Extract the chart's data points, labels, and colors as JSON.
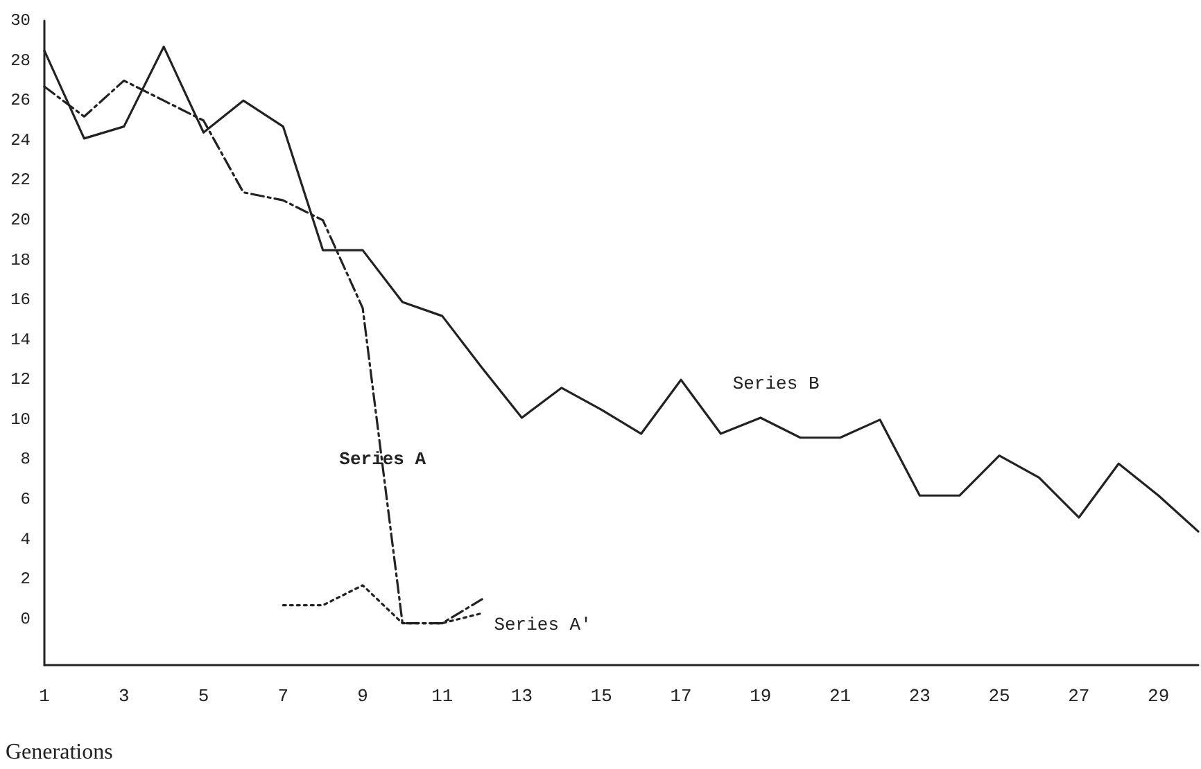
{
  "chart_data": {
    "type": "line",
    "xlabel": "Generations",
    "x": [
      1,
      2,
      3,
      4,
      5,
      6,
      7,
      8,
      9,
      10,
      11,
      12,
      13,
      14,
      15,
      16,
      17,
      18,
      19,
      20,
      21,
      22,
      23,
      24,
      25,
      26,
      27,
      28,
      29,
      30
    ],
    "series": [
      {
        "name": "Series B",
        "color": "#222222",
        "line_style": "solid",
        "values": [
          28.5,
          24.1,
          24.7,
          28.7,
          24.4,
          26.0,
          24.7,
          18.5,
          18.5,
          15.9,
          15.2,
          12.6,
          10.1,
          11.6,
          10.5,
          9.3,
          12.0,
          9.3,
          10.1,
          9.1,
          9.1,
          10.0,
          6.2,
          6.2,
          8.2,
          7.1,
          5.1,
          7.8,
          6.2,
          4.4
        ]
      },
      {
        "name": "Series A",
        "color": "#222222",
        "line_style": "dashed",
        "x": [
          1,
          2,
          3,
          4,
          5,
          6,
          7,
          8,
          9,
          10,
          11,
          12
        ],
        "values": [
          26.7,
          25.2,
          27.0,
          26.0,
          25.0,
          21.4,
          21.0,
          20.0,
          15.6,
          -0.2,
          -0.2,
          1.0
        ]
      },
      {
        "name": "Series A'",
        "color": "#222222",
        "line_style": "dotted",
        "x": [
          7,
          8,
          9,
          10,
          11,
          12
        ],
        "values": [
          0.7,
          0.7,
          1.7,
          -0.2,
          -0.2,
          0.3
        ]
      }
    ],
    "xlim": [
      1,
      30
    ],
    "xticks": [
      1,
      3,
      5,
      7,
      9,
      11,
      13,
      15,
      17,
      19,
      21,
      23,
      25,
      27,
      29
    ],
    "ylim": [
      -2.3,
      30
    ],
    "yticks": [
      0,
      2,
      4,
      6,
      8,
      10,
      12,
      14,
      16,
      18,
      20,
      22,
      24,
      26,
      28,
      30
    ],
    "marker": "none",
    "grid": false,
    "legend": false
  }
}
